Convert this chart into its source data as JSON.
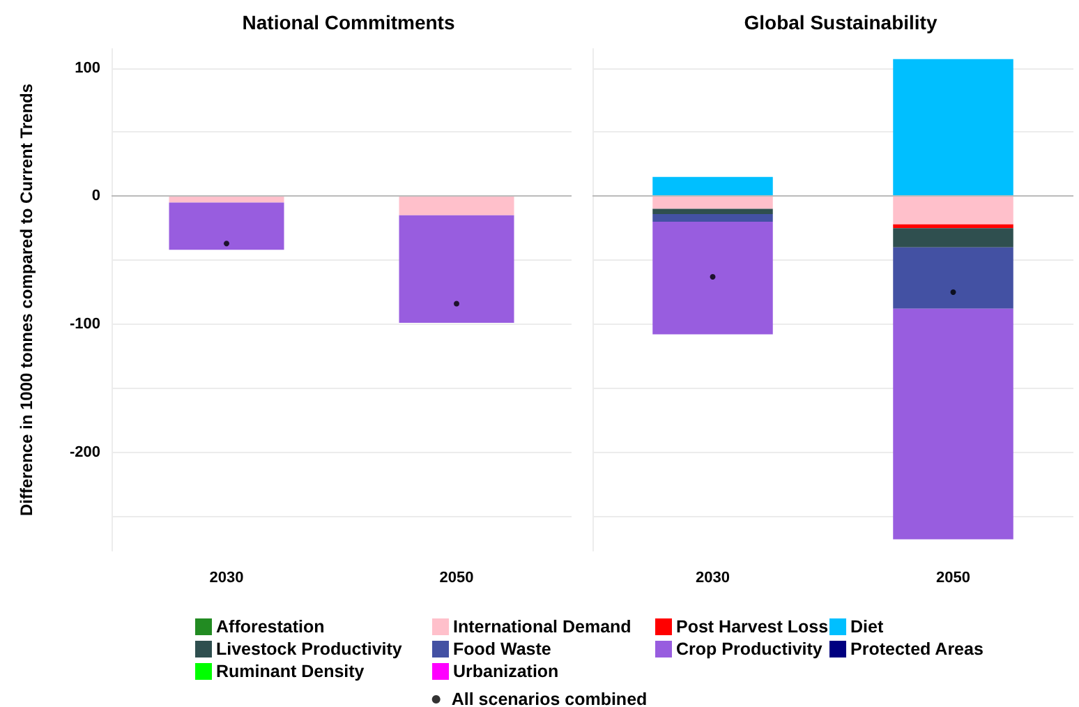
{
  "chart_data": [
    {
      "type": "bar",
      "title": "National Commitments",
      "ylabel": "Difference in 1000 tonnes compared to Current Trends",
      "categories": [
        "2030",
        "2050"
      ],
      "stacked": true,
      "ylim": [
        -277,
        115
      ],
      "yticks": [
        {
          "value": -250,
          "label": null
        },
        -200,
        {
          "value": -150,
          "label": null
        },
        -100,
        {
          "value": -50,
          "label": null
        },
        0,
        {
          "value": 50,
          "label": null
        },
        100
      ],
      "grid": "y",
      "legend": false,
      "marker": "circle",
      "ref_lines": [
        {
          "axis": "y",
          "value": 0,
          "color": "#bbbbbb"
        }
      ],
      "series": [
        {
          "color": "#ffc0cb",
          "values": [
            -5,
            -15
          ]
        },
        {
          "color": "#985ddf",
          "values": [
            -37,
            -84
          ]
        },
        {
          "type": "scatter",
          "color": "#000000",
          "values": [
            -37,
            -84
          ]
        }
      ]
    },
    {
      "type": "bar",
      "title": "Global Sustainability",
      "categories": [
        "2030",
        "2050"
      ],
      "stacked": true,
      "ylim": [
        -277,
        115
      ],
      "yticks": [
        {
          "value": -250,
          "label": null
        },
        -200,
        {
          "value": -150,
          "label": null
        },
        -100,
        {
          "value": -50,
          "label": null
        },
        0,
        {
          "value": 50,
          "label": null
        },
        100
      ],
      "grid": "y",
      "legend": "bottom",
      "tick_labels": "x",
      "marker": "circle",
      "ref_lines": [
        {
          "axis": "y",
          "value": 0,
          "color": "#bbbbbb"
        }
      ],
      "series": [
        {
          "name": "Afforestation",
          "color": "#228b22",
          "values": [
            null,
            null
          ]
        },
        {
          "name": "International Demand",
          "color": "#ffc0cb",
          "values": [
            -10,
            -22
          ]
        },
        {
          "name": "Post Harvest Loss",
          "color": "#ff0000",
          "values": [
            null,
            -3
          ]
        },
        {
          "name": "Diet",
          "color": "#00bfff",
          "values": [
            15,
            107
          ]
        },
        {
          "name": "Livestock Productivity",
          "color": "#2f4f4f",
          "values": [
            -4,
            -15
          ]
        },
        {
          "name": "Food Waste",
          "color": "#4351a3",
          "values": [
            -6,
            -48
          ]
        },
        {
          "name": "Crop Productivity",
          "color": "#985ddf",
          "values": [
            -88,
            -180
          ]
        },
        {
          "name": "Protected Areas",
          "color": "#000080",
          "values": [
            null,
            null
          ]
        },
        {
          "name": "Ruminant Density",
          "color": "#00ff00",
          "values": [
            null,
            null
          ]
        },
        {
          "name": "Urbanization",
          "color": "#ff00ff",
          "values": [
            null,
            null
          ]
        },
        {
          "name": "All scenarios combined",
          "type": "scatter",
          "color": "#000000",
          "values": [
            -63,
            -75
          ]
        }
      ]
    }
  ]
}
